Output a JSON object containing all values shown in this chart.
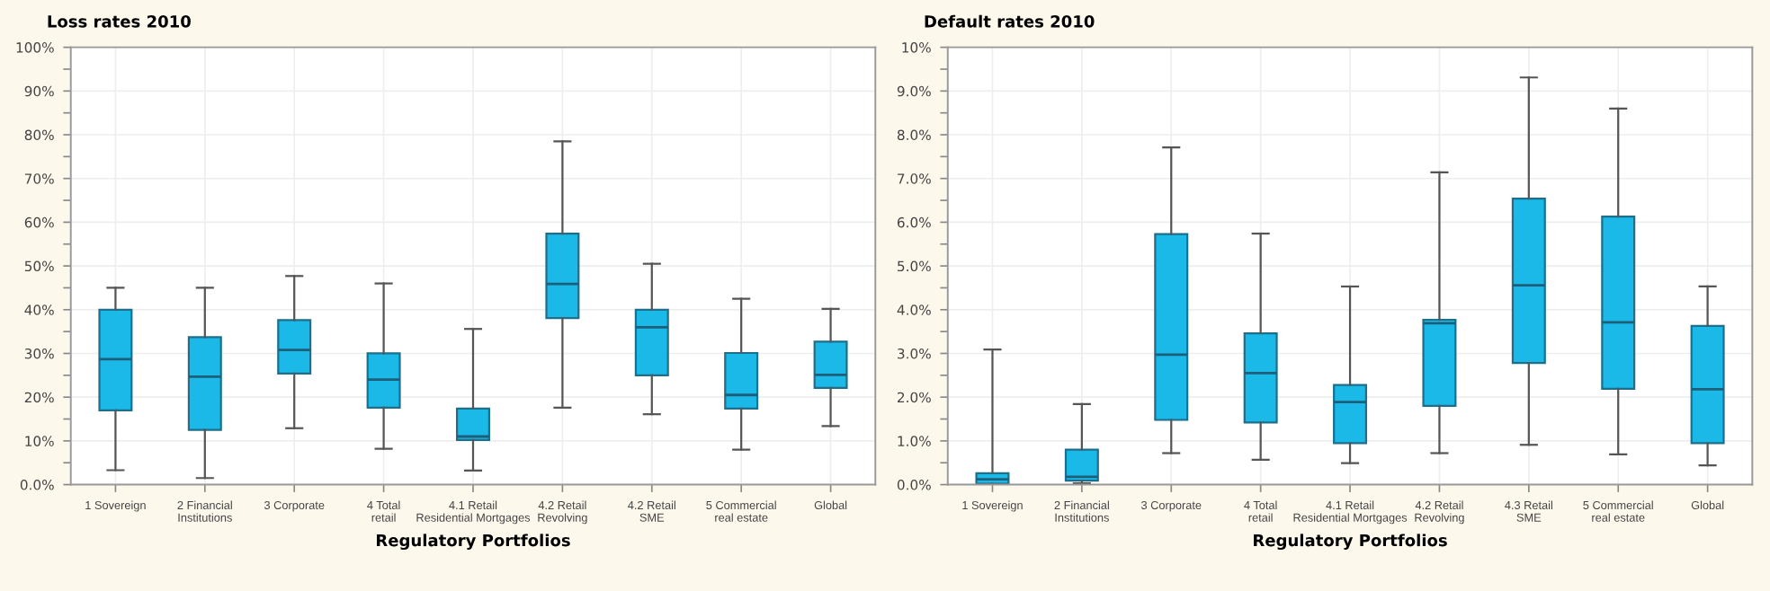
{
  "chart_data": [
    {
      "type": "box",
      "title": "Loss rates 2010",
      "xlabel": "Regulatory Portfolios",
      "color": "#1bb9e8",
      "grid": true,
      "categories": [
        "1 Sovereign",
        "2 Financial\nInstitutions",
        "3 Corporate",
        "4 Total\nretail",
        "4.1 Retail\nResidential Mortgages",
        "4.2 Retail\nRevolving",
        "4.2 Retail\nSME",
        "5 Commercial\nreal estate",
        "Global"
      ],
      "boxes": [
        {
          "low": 3.3,
          "q1": 17,
          "median": 28.7,
          "q3": 40,
          "high": 45
        },
        {
          "low": 1.5,
          "q1": 12.5,
          "median": 24.7,
          "q3": 33.7,
          "high": 45
        },
        {
          "low": 12.9,
          "q1": 25.4,
          "median": 30.8,
          "q3": 37.6,
          "high": 47.7
        },
        {
          "low": 8.2,
          "q1": 17.6,
          "median": 24,
          "q3": 30,
          "high": 46
        },
        {
          "low": 3.2,
          "q1": 10.2,
          "median": 11,
          "q3": 17.4,
          "high": 35.6
        },
        {
          "low": 17.6,
          "q1": 38.1,
          "median": 45.9,
          "q3": 57.4,
          "high": 78.5
        },
        {
          "low": 16.1,
          "q1": 25,
          "median": 36,
          "q3": 40,
          "high": 50.5
        },
        {
          "low": 8,
          "q1": 17.4,
          "median": 20.5,
          "q3": 30.1,
          "high": 42.5
        },
        {
          "low": 13.4,
          "q1": 22.1,
          "median": 25.1,
          "q3": 32.7,
          "high": 40.2
        }
      ],
      "ylim": [
        0,
        100
      ],
      "yticks": [
        {
          "value": 0,
          "label": "0.0%"
        },
        {
          "value": 5,
          "label": null
        },
        {
          "value": 10,
          "label": "10%"
        },
        {
          "value": 15,
          "label": null
        },
        {
          "value": 20,
          "label": "20%"
        },
        {
          "value": 25,
          "label": null
        },
        {
          "value": 30,
          "label": "30%"
        },
        {
          "value": 35,
          "label": null
        },
        {
          "value": 40,
          "label": "40%"
        },
        {
          "value": 45,
          "label": null
        },
        {
          "value": 50,
          "label": "50%"
        },
        {
          "value": 55,
          "label": null
        },
        {
          "value": 60,
          "label": "60%"
        },
        {
          "value": 65,
          "label": null
        },
        {
          "value": 70,
          "label": "70%"
        },
        {
          "value": 75,
          "label": null
        },
        {
          "value": 80,
          "label": "80%"
        },
        {
          "value": 85,
          "label": null
        },
        {
          "value": 90,
          "label": "90%"
        },
        {
          "value": 95,
          "label": null
        },
        {
          "value": 100,
          "label": "100%"
        }
      ]
    },
    {
      "type": "box",
      "title": "Default rates 2010",
      "xlabel": "Regulatory Portfolios",
      "color": "#1bb9e8",
      "grid": true,
      "categories": [
        "1 Sovereign",
        "2 Financial\nInstitutions",
        "3 Corporate",
        "4 Total\nretail",
        "4.1 Retail\nResidential Mortgages",
        "4.2 Retail\nRevolving",
        "4.3 Retail\nSME",
        "5 Commercial\nreal estate",
        "Global"
      ],
      "boxes": [
        {
          "low": 0,
          "q1": 0.02,
          "median": 0.12,
          "q3": 0.26,
          "high": 3.09
        },
        {
          "low": 0.03,
          "q1": 0.09,
          "median": 0.18,
          "q3": 0.8,
          "high": 1.84
        },
        {
          "low": 0.72,
          "q1": 1.48,
          "median": 2.97,
          "q3": 5.73,
          "high": 7.71
        },
        {
          "low": 0.57,
          "q1": 1.42,
          "median": 2.55,
          "q3": 3.46,
          "high": 5.74
        },
        {
          "low": 0.49,
          "q1": 0.95,
          "median": 1.89,
          "q3": 2.28,
          "high": 4.53
        },
        {
          "low": 0.72,
          "q1": 1.8,
          "median": 3.69,
          "q3": 3.77,
          "high": 7.14
        },
        {
          "low": 0.91,
          "q1": 2.78,
          "median": 4.56,
          "q3": 6.54,
          "high": 9.31
        },
        {
          "low": 0.69,
          "q1": 2.19,
          "median": 3.71,
          "q3": 6.13,
          "high": 8.6
        },
        {
          "low": 0.44,
          "q1": 0.95,
          "median": 2.18,
          "q3": 3.63,
          "high": 4.53
        }
      ],
      "ylim": [
        0,
        10
      ],
      "yticks": [
        {
          "value": 0,
          "label": "0.0%"
        },
        {
          "value": 0.5,
          "label": null
        },
        {
          "value": 1,
          "label": "1.0%"
        },
        {
          "value": 1.5,
          "label": null
        },
        {
          "value": 2,
          "label": "2.0%"
        },
        {
          "value": 2.5,
          "label": null
        },
        {
          "value": 3,
          "label": "3.0%"
        },
        {
          "value": 3.5,
          "label": null
        },
        {
          "value": 4,
          "label": "4.0%"
        },
        {
          "value": 4.5,
          "label": null
        },
        {
          "value": 5,
          "label": "5.0%"
        },
        {
          "value": 5.5,
          "label": null
        },
        {
          "value": 6,
          "label": "6.0%"
        },
        {
          "value": 6.5,
          "label": null
        },
        {
          "value": 7,
          "label": "7.0%"
        },
        {
          "value": 7.5,
          "label": null
        },
        {
          "value": 8,
          "label": "8.0%"
        },
        {
          "value": 8.5,
          "label": null
        },
        {
          "value": 9,
          "label": "9.0%"
        },
        {
          "value": 9.5,
          "label": null
        },
        {
          "value": 10,
          "label": "10%"
        }
      ]
    }
  ]
}
